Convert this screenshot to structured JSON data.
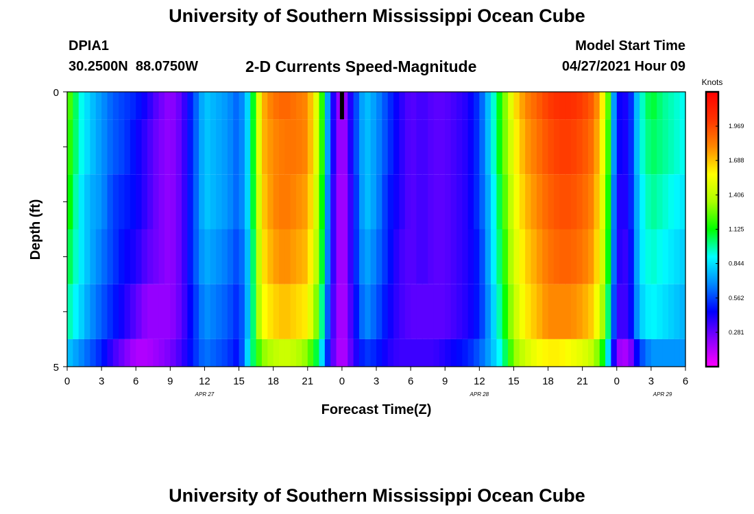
{
  "page": {
    "top_title": "University of Southern Mississippi Ocean Cube",
    "bottom_title": "University of Southern Mississippi Ocean Cube"
  },
  "header": {
    "station_id": "DPIA1",
    "coordinates": "30.2500N  88.0750W",
    "product_title": "2-D Currents Speed-Magnitude",
    "model_start_label": "Model Start Time",
    "model_start_value": "04/27/2021 Hour 09"
  },
  "chart_data": {
    "type": "heatmap",
    "title": "2-D Currents Speed-Magnitude",
    "xlabel": "Forecast Time(Z)",
    "ylabel": "Depth (ft)",
    "ylim": [
      0,
      5
    ],
    "y_ticks": [
      0,
      1,
      2,
      3,
      4,
      5
    ],
    "y_tick_labels": [
      "0",
      "",
      "",
      "",
      "",
      "5"
    ],
    "y_inverted": true,
    "x_start_hour": 0,
    "x_end_hour": 54,
    "x_ticks": [
      0,
      3,
      6,
      9,
      12,
      15,
      18,
      21,
      24,
      27,
      30,
      33,
      36,
      39,
      42,
      45,
      48,
      51,
      54
    ],
    "x_tick_labels": [
      "0",
      "3",
      "6",
      "9",
      "12",
      "15",
      "18",
      "21",
      "0",
      "3",
      "6",
      "9",
      "12",
      "15",
      "18",
      "21",
      "0",
      "3",
      "6"
    ],
    "date_labels": [
      {
        "text": "APR 27",
        "hour": 12
      },
      {
        "text": "APR 28",
        "hour": 36
      },
      {
        "text": "APR 29",
        "hour": 52
      }
    ],
    "colorbar": {
      "label": "Knots",
      "min": 0,
      "max": 2.25,
      "tick_values": [
        1.969,
        1.688,
        1.406,
        1.125,
        0.844,
        0.562,
        0.281
      ],
      "tick_labels": [
        "1.969",
        "1.688",
        "1.406",
        "1.125",
        "0.844",
        "0.562",
        "0.281"
      ],
      "colors": [
        "#ff00ff",
        "#8800ff",
        "#0000ff",
        "#0088ff",
        "#00ffff",
        "#00ff00",
        "#aaff00",
        "#ffff00",
        "#ff8800",
        "#ff3300",
        "#ff0000"
      ]
    },
    "model_start_marker": {
      "hour": 24,
      "depth_from": 0,
      "depth_to": 0.5
    },
    "depth_bands": [
      0,
      0.5,
      1.5,
      2.5,
      3.5,
      4.5
    ],
    "time_step_hours": 0.5,
    "keyframes_hours": [
      0,
      1,
      2,
      3,
      4,
      5,
      6,
      7,
      8,
      9,
      10,
      11,
      12,
      13,
      14,
      15,
      16,
      17,
      18,
      19,
      20,
      21,
      22,
      23,
      24,
      25,
      26,
      27,
      28,
      29,
      30,
      31,
      32,
      33,
      34,
      35,
      36,
      37,
      38,
      39,
      40,
      41,
      42,
      43,
      44,
      45,
      46,
      47,
      48,
      49,
      50,
      51,
      52,
      53,
      54
    ],
    "speed_knots": [
      [
        1.3,
        0.95,
        0.8,
        0.7,
        0.6,
        0.55,
        0.5,
        0.4,
        0.28,
        0.2,
        0.3,
        0.55,
        0.8,
        0.75,
        0.7,
        0.6,
        0.9,
        1.7,
        1.85,
        1.9,
        1.85,
        1.8,
        1.4,
        0.5,
        0.1,
        0.5,
        0.8,
        0.7,
        0.55,
        0.4,
        0.3,
        0.35,
        0.3,
        0.3,
        0.35,
        0.4,
        0.55,
        0.85,
        1.2,
        1.6,
        1.8,
        1.9,
        2.0,
        2.05,
        2.05,
        2.0,
        1.9,
        1.5,
        0.45,
        0.4,
        0.9,
        1.1,
        1.0,
        0.95,
        0.9
      ],
      [
        1.25,
        0.95,
        0.8,
        0.7,
        0.6,
        0.55,
        0.45,
        0.35,
        0.25,
        0.2,
        0.3,
        0.55,
        0.8,
        0.75,
        0.7,
        0.6,
        0.9,
        1.7,
        1.8,
        1.85,
        1.85,
        1.8,
        1.4,
        0.5,
        0.1,
        0.5,
        0.8,
        0.7,
        0.55,
        0.4,
        0.3,
        0.35,
        0.3,
        0.3,
        0.35,
        0.4,
        0.55,
        0.85,
        1.2,
        1.55,
        1.75,
        1.85,
        1.95,
        2.0,
        2.0,
        1.95,
        1.85,
        1.45,
        0.45,
        0.4,
        0.9,
        1.05,
        1.0,
        0.95,
        0.9
      ],
      [
        1.2,
        0.9,
        0.75,
        0.7,
        0.55,
        0.5,
        0.45,
        0.35,
        0.25,
        0.2,
        0.3,
        0.55,
        0.8,
        0.75,
        0.7,
        0.6,
        0.9,
        1.65,
        1.8,
        1.85,
        1.8,
        1.75,
        1.35,
        0.45,
        0.1,
        0.45,
        0.8,
        0.7,
        0.5,
        0.4,
        0.3,
        0.35,
        0.3,
        0.3,
        0.35,
        0.4,
        0.55,
        0.8,
        1.15,
        1.5,
        1.7,
        1.8,
        1.9,
        1.95,
        1.95,
        1.9,
        1.8,
        1.4,
        0.4,
        0.4,
        0.85,
        1.0,
        0.95,
        0.9,
        0.85
      ],
      [
        1.1,
        0.9,
        0.75,
        0.65,
        0.55,
        0.45,
        0.4,
        0.3,
        0.25,
        0.2,
        0.3,
        0.55,
        0.75,
        0.7,
        0.65,
        0.55,
        0.85,
        1.6,
        1.75,
        1.8,
        1.75,
        1.7,
        1.3,
        0.45,
        0.1,
        0.45,
        0.75,
        0.65,
        0.5,
        0.35,
        0.3,
        0.35,
        0.3,
        0.3,
        0.35,
        0.4,
        0.5,
        0.8,
        1.1,
        1.45,
        1.65,
        1.75,
        1.85,
        1.9,
        1.9,
        1.85,
        1.75,
        1.35,
        0.4,
        0.35,
        0.85,
        0.95,
        0.9,
        0.85,
        0.8
      ],
      [
        1.0,
        0.85,
        0.7,
        0.6,
        0.5,
        0.4,
        0.3,
        0.2,
        0.2,
        0.2,
        0.3,
        0.5,
        0.7,
        0.65,
        0.6,
        0.5,
        0.85,
        1.55,
        1.65,
        1.7,
        1.65,
        1.6,
        1.2,
        0.4,
        0.1,
        0.4,
        0.7,
        0.6,
        0.45,
        0.35,
        0.3,
        0.3,
        0.3,
        0.3,
        0.35,
        0.4,
        0.5,
        0.75,
        1.05,
        1.4,
        1.6,
        1.7,
        1.8,
        1.8,
        1.8,
        1.75,
        1.65,
        1.25,
        0.35,
        0.35,
        0.8,
        0.9,
        0.85,
        0.8,
        0.75
      ],
      [
        0.8,
        0.7,
        0.6,
        0.5,
        0.35,
        0.25,
        0.15,
        0.15,
        0.2,
        0.25,
        0.35,
        0.5,
        0.65,
        0.6,
        0.55,
        0.45,
        0.95,
        1.3,
        1.4,
        1.45,
        1.4,
        1.3,
        1.0,
        0.35,
        0.1,
        0.35,
        0.55,
        0.5,
        0.4,
        0.35,
        0.35,
        0.35,
        0.35,
        0.4,
        0.45,
        0.5,
        0.6,
        0.75,
        0.95,
        1.3,
        1.45,
        1.55,
        1.6,
        1.6,
        1.55,
        1.5,
        1.4,
        1.05,
        0.2,
        0.15,
        0.55,
        0.7,
        0.7,
        0.7,
        0.7
      ]
    ]
  }
}
